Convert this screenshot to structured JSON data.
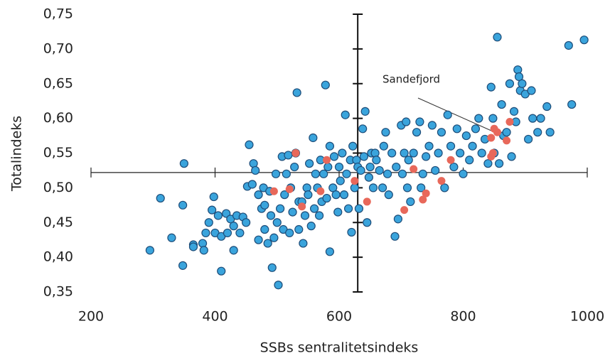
{
  "chart_data": {
    "type": "scatter",
    "x_label": "SSBs sentralitetsindeks",
    "y_label": "Totalindeks",
    "annotation": "Sandefjord",
    "xlim": [
      200,
      1000
    ],
    "ylim": [
      0.35,
      0.75
    ],
    "xticks": [
      200,
      400,
      600,
      800,
      1000
    ],
    "yticks": [
      {
        "value": 0.35,
        "label": "0,35"
      },
      {
        "value": 0.4,
        "label": "0,40"
      },
      {
        "value": 0.45,
        "label": "0,45"
      },
      {
        "value": 0.5,
        "label": "0,50"
      },
      {
        "value": 0.55,
        "label": "0,55"
      },
      {
        "value": 0.6,
        "label": "0,60"
      },
      {
        "value": 0.65,
        "label": "0,65"
      },
      {
        "value": 0.7,
        "label": "0,70"
      },
      {
        "value": 0.75,
        "label": "0,75"
      }
    ],
    "cross": {
      "x": 630,
      "y": 0.522
    },
    "series": [
      {
        "color": "#3aa4dc",
        "x": [
          295,
          312,
          330,
          348,
          350,
          348,
          365,
          365,
          380,
          382,
          385,
          390,
          395,
          398,
          400,
          405,
          410,
          410,
          418,
          420,
          425,
          430,
          430,
          435,
          440,
          445,
          450,
          452,
          455,
          460,
          462,
          465,
          470,
          470,
          475,
          478,
          480,
          480,
          485,
          488,
          490,
          492,
          495,
          498,
          500,
          502,
          505,
          508,
          510,
          512,
          515,
          518,
          520,
          522,
          525,
          528,
          530,
          532,
          535,
          535,
          540,
          542,
          545,
          548,
          550,
          552,
          555,
          558,
          560,
          562,
          565,
          568,
          570,
          572,
          575,
          578,
          580,
          582,
          585,
          585,
          590,
          592,
          595,
          598,
          600,
          602,
          605,
          608,
          610,
          612,
          615,
          618,
          620,
          622,
          625,
          628,
          630,
          632,
          635,
          638,
          640,
          642,
          645,
          648,
          650,
          652,
          655,
          658,
          660,
          665,
          670,
          672,
          675,
          678,
          680,
          685,
          690,
          692,
          695,
          700,
          702,
          705,
          708,
          710,
          712,
          715,
          720,
          725,
          730,
          732,
          735,
          740,
          745,
          750,
          755,
          760,
          765,
          770,
          775,
          780,
          785,
          790,
          795,
          800,
          805,
          810,
          815,
          820,
          825,
          830,
          835,
          840,
          845,
          848,
          850,
          855,
          858,
          862,
          865,
          870,
          875,
          878,
          882,
          885,
          888,
          890,
          892,
          895,
          900,
          905,
          910,
          912,
          920,
          925,
          935,
          940,
          970,
          975,
          995
        ],
        "y": [
          0.41,
          0.485,
          0.428,
          0.388,
          0.535,
          0.475,
          0.418,
          0.415,
          0.42,
          0.41,
          0.435,
          0.45,
          0.468,
          0.487,
          0.435,
          0.46,
          0.38,
          0.43,
          0.463,
          0.435,
          0.455,
          0.41,
          0.445,
          0.46,
          0.435,
          0.458,
          0.45,
          0.502,
          0.562,
          0.505,
          0.535,
          0.525,
          0.425,
          0.49,
          0.47,
          0.5,
          0.44,
          0.475,
          0.42,
          0.495,
          0.46,
          0.385,
          0.428,
          0.52,
          0.45,
          0.36,
          0.47,
          0.545,
          0.44,
          0.49,
          0.52,
          0.547,
          0.435,
          0.5,
          0.465,
          0.53,
          0.55,
          0.637,
          0.44,
          0.48,
          0.48,
          0.42,
          0.46,
          0.5,
          0.49,
          0.535,
          0.445,
          0.572,
          0.47,
          0.52,
          0.5,
          0.46,
          0.54,
          0.48,
          0.52,
          0.648,
          0.485,
          0.53,
          0.408,
          0.56,
          0.5,
          0.545,
          0.49,
          0.465,
          0.53,
          0.51,
          0.55,
          0.49,
          0.605,
          0.52,
          0.47,
          0.54,
          0.436,
          0.56,
          0.5,
          0.54,
          0.53,
          0.47,
          0.525,
          0.585,
          0.545,
          0.61,
          0.45,
          0.515,
          0.53,
          0.55,
          0.5,
          0.55,
          0.54,
          0.525,
          0.5,
          0.56,
          0.58,
          0.52,
          0.49,
          0.55,
          0.43,
          0.53,
          0.455,
          0.59,
          0.52,
          0.55,
          0.595,
          0.5,
          0.54,
          0.48,
          0.55,
          0.58,
          0.595,
          0.5,
          0.52,
          0.545,
          0.56,
          0.59,
          0.525,
          0.55,
          0.58,
          0.5,
          0.605,
          0.56,
          0.53,
          0.585,
          0.55,
          0.52,
          0.575,
          0.54,
          0.56,
          0.585,
          0.6,
          0.55,
          0.57,
          0.535,
          0.645,
          0.6,
          0.55,
          0.717,
          0.535,
          0.62,
          0.575,
          0.58,
          0.65,
          0.545,
          0.61,
          0.595,
          0.67,
          0.66,
          0.64,
          0.65,
          0.635,
          0.57,
          0.64,
          0.6,
          0.58,
          0.6,
          0.617,
          0.58,
          0.705,
          0.62,
          0.713
        ]
      },
      {
        "color": "#e8685a",
        "x": [
          495,
          520,
          530,
          540,
          570,
          580,
          625,
          645,
          705,
          720,
          735,
          740,
          765,
          780,
          845,
          848,
          850,
          855,
          870,
          875,
          845
        ],
        "y": [
          0.495,
          0.498,
          0.55,
          0.473,
          0.495,
          0.54,
          0.51,
          0.48,
          0.468,
          0.527,
          0.483,
          0.492,
          0.51,
          0.54,
          0.572,
          0.55,
          0.585,
          0.58,
          0.568,
          0.595,
          0.545
        ]
      }
    ]
  }
}
